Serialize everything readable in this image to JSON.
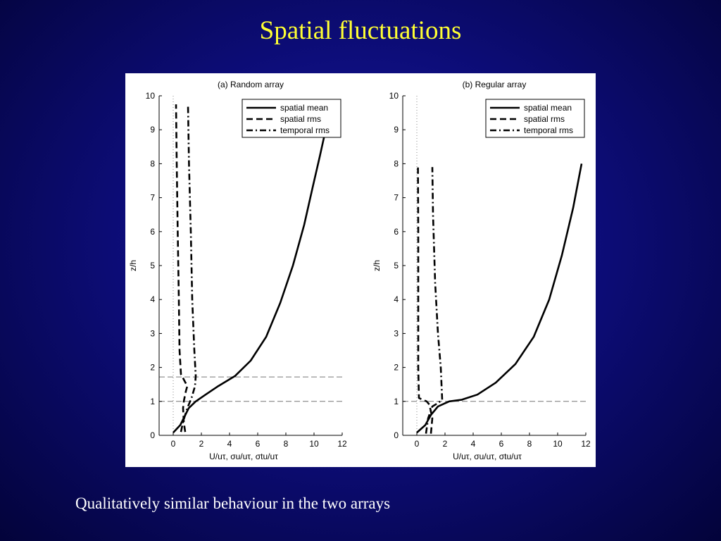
{
  "slide": {
    "title": "Spatial fluctuations",
    "caption": "Qualitatively similar behaviour in the two arrays"
  },
  "colors": {
    "background": "#0d0d7a",
    "title": "#ffff33",
    "caption": "#ffffff",
    "figure_background": "#ffffff"
  },
  "chart_data": [
    {
      "type": "line",
      "title": "(a) Random array",
      "xlabel": "U/uτ, σu/uτ, σtu/uτ",
      "ylabel": "z/h",
      "xlim": [
        -1,
        12
      ],
      "ylim": [
        0,
        10
      ],
      "xticks": [
        0,
        2,
        4,
        6,
        8,
        10,
        12
      ],
      "yticks": [
        0,
        1,
        2,
        3,
        4,
        5,
        6,
        7,
        8,
        9,
        10
      ],
      "legend_position": "top-right",
      "reference_lines": {
        "vertical_x": 0,
        "horizontal_y": [
          1,
          1.72
        ]
      },
      "series": [
        {
          "name": "spatial mean",
          "style": "solid",
          "x": [
            0,
            0.5,
            0.8,
            1.1,
            1.6,
            2.3,
            3.2,
            4.4,
            5.5,
            6.6,
            7.6,
            8.5,
            9.3,
            9.9,
            10.4,
            10.8
          ],
          "y": [
            0.08,
            0.3,
            0.55,
            0.8,
            1.0,
            1.2,
            1.45,
            1.75,
            2.2,
            2.9,
            3.9,
            5.0,
            6.2,
            7.3,
            8.2,
            8.95
          ]
        },
        {
          "name": "spatial rms",
          "style": "dashed",
          "x": [
            0.85,
            0.75,
            0.7,
            0.75,
            0.9,
            1.0,
            0.55,
            0.45,
            0.4,
            0.32,
            0.25,
            0.2
          ],
          "y": [
            0.1,
            0.4,
            0.8,
            1.0,
            1.3,
            1.45,
            1.8,
            2.5,
            4.0,
            6.0,
            8.0,
            9.75
          ]
        },
        {
          "name": "temporal rms",
          "style": "dashdot",
          "x": [
            0.55,
            0.7,
            1.0,
            1.3,
            1.55,
            1.6,
            1.5,
            1.35,
            1.25,
            1.12,
            1.05
          ],
          "y": [
            0.1,
            0.4,
            0.8,
            1.1,
            1.45,
            1.75,
            2.5,
            4.0,
            6.0,
            8.0,
            9.75
          ]
        }
      ]
    },
    {
      "type": "line",
      "title": "(b) Regular array",
      "xlabel": "U/uτ, σu/uτ, σtu/uτ",
      "ylabel": "z/h",
      "xlim": [
        -1,
        12
      ],
      "ylim": [
        0,
        10
      ],
      "xticks": [
        0,
        2,
        4,
        6,
        8,
        10,
        12
      ],
      "yticks": [
        0,
        1,
        2,
        3,
        4,
        5,
        6,
        7,
        8,
        9,
        10
      ],
      "legend_position": "top-right",
      "reference_lines": {
        "vertical_x": 0,
        "horizontal_y": [
          1
        ]
      },
      "series": [
        {
          "name": "spatial mean",
          "style": "solid",
          "x": [
            0,
            0.6,
            1.0,
            1.5,
            2.3,
            3.2,
            4.3,
            5.6,
            7.0,
            8.3,
            9.4,
            10.3,
            11.1,
            11.7
          ],
          "y": [
            0.08,
            0.3,
            0.6,
            0.85,
            1.0,
            1.05,
            1.2,
            1.55,
            2.1,
            2.9,
            4.0,
            5.3,
            6.7,
            8.0
          ]
        },
        {
          "name": "spatial rms",
          "style": "dashed",
          "x": [
            1.0,
            1.1,
            0.9,
            0.7,
            0.4,
            0.15,
            0.1,
            0.1,
            0.1,
            0.08
          ],
          "y": [
            0.05,
            0.5,
            0.9,
            1.0,
            1.05,
            1.1,
            2.0,
            4.0,
            6.0,
            7.9
          ]
        },
        {
          "name": "temporal rms",
          "style": "dashdot",
          "x": [
            0.65,
            0.8,
            1.1,
            1.5,
            1.8,
            1.7,
            1.5,
            1.3,
            1.15,
            1.1
          ],
          "y": [
            0.05,
            0.5,
            0.85,
            0.95,
            1.05,
            2.0,
            3.0,
            4.5,
            6.5,
            7.9
          ]
        }
      ]
    }
  ]
}
